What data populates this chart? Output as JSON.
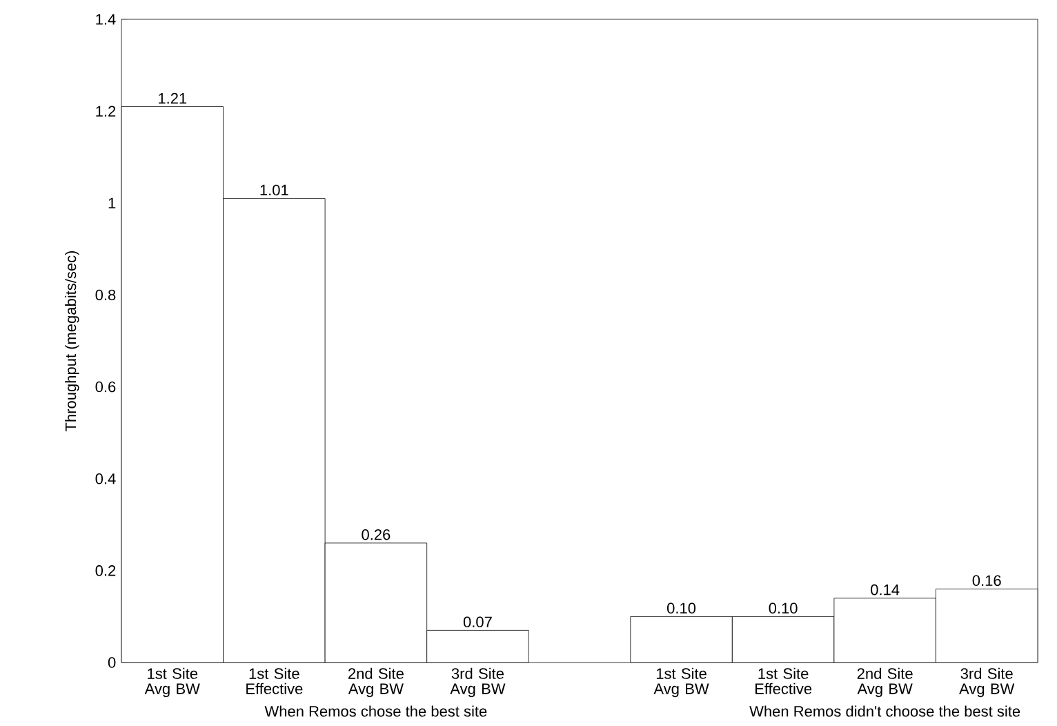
{
  "chart_data": {
    "type": "bar",
    "ylabel": "Throughput (megabits/sec)",
    "categories": [
      "1st Site Avg BW",
      "1st Site Effective",
      "2nd Site Avg BW",
      "3rd Site Avg BW",
      null,
      "1st Site Avg BW",
      "1st Site Effective",
      "2nd Site Avg BW",
      "3rd Site Avg BW"
    ],
    "values": [
      1.21,
      1.01,
      0.26,
      0.07,
      null,
      0.1,
      0.1,
      0.14,
      0.16
    ],
    "value_labels": [
      "1.21",
      "1.01",
      "0.26",
      "0.07",
      null,
      "0.10",
      "0.10",
      "0.14",
      "0.16"
    ],
    "color": "#ffffff",
    "ylim": [
      0,
      1.4
    ],
    "yticks": [
      0,
      0.2,
      0.4,
      0.6,
      0.8,
      1,
      1.2,
      1.4
    ],
    "annotations": [
      "When Remos chose the best site",
      "When Remos didn't choose the best site"
    ],
    "grid": false
  }
}
